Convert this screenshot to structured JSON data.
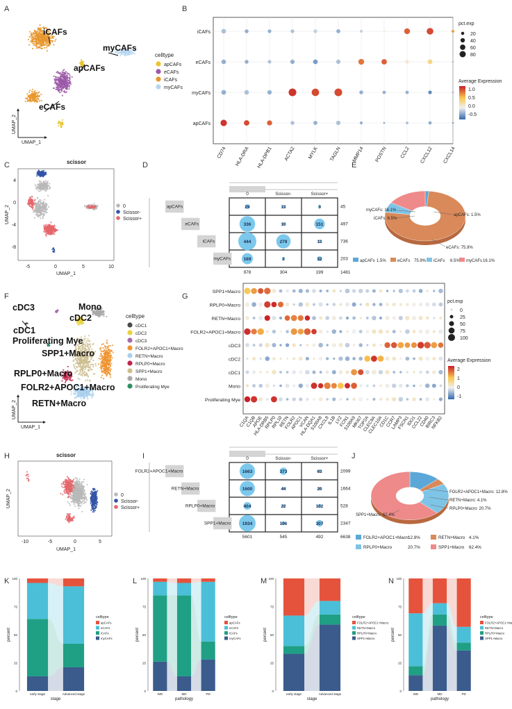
{
  "panels": {
    "A": {
      "letter": "A",
      "cluster_labels": [
        "iCAFs",
        "myCAFs",
        "apCAFs",
        "eCAFs"
      ],
      "legend_title": "celltype",
      "legend": [
        {
          "name": "apCAFs",
          "color": "#e9c52e"
        },
        {
          "name": "eCAFs",
          "color": "#9b59a8"
        },
        {
          "name": "iCAFs",
          "color": "#e8972d"
        },
        {
          "name": "myCAFs",
          "color": "#b7d6ee"
        }
      ],
      "axis_x": "UMAP_1",
      "axis_y": "UMAP_2"
    },
    "B": {
      "letter": "B",
      "rows": [
        "iCAFs",
        "eCAFs",
        "myCAFs",
        "apCAFs"
      ],
      "cols": [
        "CD74",
        "HLA-DRA",
        "HLA-DPB1",
        "ACTA2",
        "MYLK",
        "TAGLN",
        "MMP14",
        "POSTN",
        "CCL2",
        "CXCL12",
        "CXCL14"
      ],
      "size_title": "pct.exp",
      "size_values": [
        "20",
        "40",
        "60",
        "80"
      ],
      "color_title": "Average Expression",
      "color_ticks": [
        "1.0",
        "0.5",
        "0.0",
        "-0.5"
      ]
    },
    "C": {
      "letter": "C",
      "title": "scissor",
      "axis_x": "UMAP_1",
      "axis_y": "UMAP_2",
      "xticks": [
        "-5",
        "0",
        "5",
        "10"
      ],
      "yticks": [
        "4",
        "0",
        "-4",
        "-8"
      ],
      "legend": [
        {
          "name": "0",
          "color": "#b8b8b8"
        },
        {
          "name": "Scissor-",
          "color": "#3253a6"
        },
        {
          "name": "Scissor+",
          "color": "#e4666b"
        }
      ]
    },
    "D": {
      "letter": "D",
      "cols": [
        "0",
        "Scissor-",
        "Scissor+"
      ],
      "rows": [
        "apCAFs",
        "eCAFs",
        "iCAFs",
        "myCAFs"
      ],
      "values": [
        [
          29,
          13,
          3
        ],
        [
          336,
          10,
          151
        ],
        [
          444,
          279,
          13
        ],
        [
          169,
          2,
          32
        ]
      ],
      "row_totals": [
        "45",
        "497",
        "736",
        "203"
      ],
      "col_totals": [
        "978",
        "304",
        "199",
        "1481"
      ]
    },
    "E": {
      "letter": "E",
      "labels": [
        "myCAFs: 16.1%",
        "apCAFs: 1.5%",
        "iCAFs: 6.5%",
        "eCAFs: 75.9%"
      ],
      "legend": [
        {
          "name": "apCAFs",
          "pct": "1.5%",
          "color": "#5ba8d8"
        },
        {
          "name": "eCAFs",
          "pct": "75.9%",
          "color": "#d9895a"
        },
        {
          "name": "iCAFs",
          "pct": "6.5%",
          "color": "#7ec4e6"
        },
        {
          "name": "myCAFs",
          "pct": "16.1%",
          "color": "#ee8a8a"
        }
      ]
    },
    "F": {
      "letter": "F",
      "cluster_labels": [
        "cDC3",
        "Mono",
        "cDC2",
        "cDC1",
        "Proliferating Mye",
        "SPP1+Macro",
        "RPLP0+Macro",
        "FOLR2+APOC1+Macro",
        "RETN+Macro"
      ],
      "legend_title": "celltype",
      "legend": [
        {
          "name": "cDC1",
          "color": "#4a4a4a"
        },
        {
          "name": "cDC2",
          "color": "#e9d23a"
        },
        {
          "name": "cDC3",
          "color": "#a36aaa"
        },
        {
          "name": "FOLR2+APOC1+Macro",
          "color": "#ef9430"
        },
        {
          "name": "RETN+Macro",
          "color": "#a9cfee"
        },
        {
          "name": "RPLP0+Macro",
          "color": "#c2244d"
        },
        {
          "name": "SPP1+Macro",
          "color": "#cdbd8f"
        },
        {
          "name": "Mono",
          "color": "#a9a9a9"
        },
        {
          "name": "Proliferating Mye",
          "color": "#2d8f62"
        }
      ],
      "axis_x": "UMAP_1",
      "axis_y": "UMAP_2"
    },
    "G": {
      "letter": "G",
      "rows": [
        "SPP1+Macro",
        "RPLP0+Macro",
        "RETN+Macro",
        "FOLR2+APOC1+Macro",
        "cDC3",
        "cDC2",
        "cDC1",
        "Mono",
        "Proliferating Mye"
      ],
      "cols": [
        "C1QA",
        "C1QB",
        "APOE",
        "HLA-DRB5",
        "RPLP0",
        "RPL10",
        "RETN",
        "FOLR2",
        "APOC1",
        "VCAN",
        "HLA-DQA1",
        "S100A8",
        "CXCL8",
        "IL1B",
        "LYZ",
        "FCN1",
        "S100A9",
        "MKI67",
        "TOP2A",
        "CLEC9A",
        "CLEC10A",
        "CD1C",
        "CCR7",
        "LAMP3",
        "FSCN1",
        "IDO1",
        "CCL22",
        "CD40",
        "BIRC3",
        "NFKB2"
      ],
      "size_title": "pct.exp",
      "size_values": [
        "0",
        "25",
        "50",
        "75",
        "100"
      ],
      "color_title": "Average Expression",
      "color_ticks": [
        "2",
        "1",
        "0",
        "-1"
      ]
    },
    "H": {
      "letter": "H",
      "title": "scissor",
      "axis_x": "UMAP_1",
      "axis_y": "UMAP_2",
      "xticks": [
        "-10",
        "-5",
        "0",
        "5"
      ],
      "legend": [
        {
          "name": "0",
          "color": "#b8b8b8"
        },
        {
          "name": "Scissor-",
          "color": "#3253a6"
        },
        {
          "name": "Scissor+",
          "color": "#e4666b"
        }
      ]
    },
    "I": {
      "letter": "I",
      "cols": [
        "0",
        "Scissor-",
        "Scissor+"
      ],
      "rows": [
        "FOLR2+APOC1+Macro",
        "RETN+Macro",
        "RPLP0+Macro",
        "SPP1+Macro"
      ],
      "values": [
        [
          1663,
          373,
          63
        ],
        [
          1600,
          44,
          20
        ],
        [
          404,
          22,
          102
        ],
        [
          1934,
          106,
          307
        ]
      ],
      "row_totals": [
        "2099",
        "1664",
        "528",
        "2347"
      ],
      "col_totals": [
        "5601",
        "545",
        "492",
        "6638"
      ]
    },
    "J": {
      "letter": "J",
      "labels": [
        "FOLR2+APOC1+Macro: 12.8%",
        "RETN+Macro: 4.1%",
        "RPLP0+Macro: 20.7%",
        "SPP1+Macro: 62.4%"
      ],
      "legend": [
        {
          "name": "FOLR2+APOC1+Macro",
          "pct": "12.8%",
          "color": "#5ba8d8"
        },
        {
          "name": "RETN+Macro",
          "pct": "4.1%",
          "color": "#d9895a"
        },
        {
          "name": "RPLP0+Macro",
          "pct": "20.7%",
          "color": "#7ec4e6"
        },
        {
          "name": "SPP1+Macro",
          "pct": "62.4%",
          "color": "#ee8a8a"
        }
      ]
    }
  },
  "chart_data": [
    {
      "panel": "K",
      "type": "bar",
      "stacked": true,
      "categories": [
        "early stage",
        "Advanced stage"
      ],
      "xlabel": "stage",
      "ylabel": "percent",
      "ylim": [
        0,
        100
      ],
      "yticks": [
        "0",
        "25",
        "50",
        "75",
        "100"
      ],
      "legend_title": "celltype",
      "series": [
        {
          "name": "myCAFs",
          "color": "#3a5b8c",
          "values": [
            13,
            21
          ]
        },
        {
          "name": "iCAFs",
          "color": "#1fa085",
          "values": [
            51,
            21
          ]
        },
        {
          "name": "eCAFs",
          "color": "#4bbfd8",
          "values": [
            32,
            51
          ]
        },
        {
          "name": "apCAFs",
          "color": "#e5533d",
          "values": [
            4,
            7
          ]
        }
      ]
    },
    {
      "panel": "L",
      "type": "bar",
      "stacked": true,
      "categories": [
        "WD",
        "MD",
        "PD"
      ],
      "xlabel": "pathology",
      "ylabel": "percent",
      "ylim": [
        0,
        100
      ],
      "yticks": [
        "0",
        "25",
        "50",
        "75",
        "100"
      ],
      "legend_title": "celltype",
      "series": [
        {
          "name": "myCAFs",
          "color": "#3a5b8c",
          "values": [
            26,
            13,
            28
          ]
        },
        {
          "name": "iCAFs",
          "color": "#1fa085",
          "values": [
            59,
            72,
            16
          ]
        },
        {
          "name": "eCAFs",
          "color": "#4bbfd8",
          "values": [
            12,
            11,
            53
          ]
        },
        {
          "name": "apCAFs",
          "color": "#e5533d",
          "values": [
            3,
            4,
            3
          ]
        }
      ]
    },
    {
      "panel": "M",
      "type": "bar",
      "stacked": true,
      "categories": [
        "early stage",
        "Advanced stage"
      ],
      "xlabel": "stage",
      "ylabel": "percent",
      "ylim": [
        0,
        100
      ],
      "yticks": [
        "0",
        "25",
        "50",
        "75",
        "100"
      ],
      "legend_title": "celltype",
      "series": [
        {
          "name": "SPP1+Macro",
          "color": "#3a5b8c",
          "values": [
            33,
            59
          ]
        },
        {
          "name": "RPLP0+Macro",
          "color": "#1fa085",
          "values": [
            7,
            9
          ]
        },
        {
          "name": "RETN+Macro",
          "color": "#4bbfd8",
          "values": [
            27,
            12
          ]
        },
        {
          "name": "FOLR2+APOC1+Macro",
          "color": "#e5533d",
          "values": [
            33,
            20
          ]
        }
      ]
    },
    {
      "panel": "N",
      "type": "bar",
      "stacked": true,
      "categories": [
        "WD",
        "MD",
        "PD"
      ],
      "xlabel": "pathology",
      "ylabel": "percent",
      "ylim": [
        0,
        100
      ],
      "yticks": [
        "0",
        "25",
        "50",
        "75",
        "100"
      ],
      "legend_title": "celltype",
      "series": [
        {
          "name": "SPP1+Macro",
          "color": "#3a5b8c",
          "values": [
            14,
            58,
            36
          ]
        },
        {
          "name": "RPLP0+Macro",
          "color": "#1fa085",
          "values": [
            8,
            10,
            7
          ]
        },
        {
          "name": "RETN+Macro",
          "color": "#4bbfd8",
          "values": [
            47,
            10,
            14
          ]
        },
        {
          "name": "FOLR2+APOC1+Macro",
          "color": "#e5533d",
          "values": [
            31,
            22,
            43
          ]
        }
      ]
    }
  ]
}
